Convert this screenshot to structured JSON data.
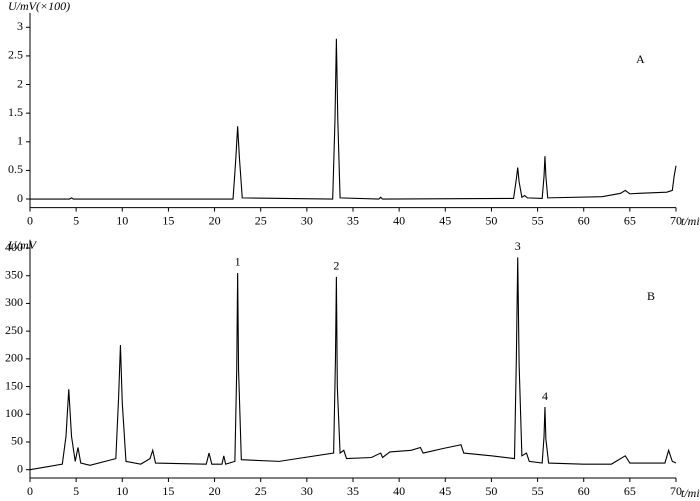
{
  "chart_data": [
    {
      "type": "line",
      "ylabel": "U/mV(×100)",
      "xlabel": "t/min",
      "panel_label": "A",
      "xlim": [
        0,
        70
      ],
      "xticks": [
        0,
        5,
        10,
        15,
        20,
        25,
        30,
        35,
        40,
        45,
        50,
        55,
        60,
        65,
        70
      ],
      "ylim": [
        -0.15,
        3.25
      ],
      "yticks": [
        0,
        0.5,
        1,
        1.5,
        2,
        2.5,
        3
      ],
      "series": [
        {
          "color": "#000000",
          "x": [
            0,
            4.3,
            4.5,
            4.7,
            22.0,
            22.3,
            22.5,
            22.7,
            23.0,
            32.8,
            33.05,
            33.2,
            33.35,
            33.6,
            37.8,
            38,
            38.2,
            52.4,
            52.7,
            52.85,
            53.0,
            53.3,
            53.6,
            53.9,
            55.5,
            55.7,
            55.8,
            55.9,
            56.1,
            62,
            64,
            64.5,
            65,
            66,
            69,
            69.6,
            69.8,
            70
          ],
          "values": [
            0,
            0,
            0.02,
            0,
            0,
            0.7,
            1.27,
            0.7,
            0.02,
            0,
            1.4,
            2.8,
            1.4,
            0.02,
            0,
            0.03,
            0,
            0.01,
            0.35,
            0.55,
            0.3,
            0.03,
            0.06,
            0.02,
            0.01,
            0.4,
            0.75,
            0.4,
            0.02,
            0.04,
            0.1,
            0.15,
            0.09,
            0.1,
            0.12,
            0.15,
            0.4,
            0.58
          ]
        }
      ]
    },
    {
      "type": "line",
      "ylabel": "U/mV",
      "xlabel": "t/min",
      "panel_label": "B",
      "xlim": [
        0,
        70
      ],
      "xticks": [
        0,
        5,
        10,
        15,
        20,
        25,
        30,
        35,
        40,
        45,
        50,
        55,
        60,
        65,
        70
      ],
      "ylim": [
        -15,
        415
      ],
      "yticks": [
        0,
        50,
        100,
        150,
        200,
        250,
        300,
        350,
        400
      ],
      "series": [
        {
          "color": "#000000",
          "x": [
            0,
            3.5,
            3.9,
            4.2,
            4.5,
            4.9,
            5.2,
            5.5,
            6.5,
            9.3,
            9.6,
            9.8,
            10.0,
            10.4,
            12,
            13.0,
            13.3,
            13.6,
            19.1,
            19.4,
            19.7,
            20.8,
            21.0,
            21.2,
            22.2,
            22.4,
            22.5,
            22.6,
            22.9,
            27,
            32.9,
            33.1,
            33.2,
            33.3,
            33.6,
            34.0,
            34.3,
            37,
            38.0,
            38.2,
            39.0,
            41.3,
            42.3,
            42.6,
            44.7,
            46.7,
            47,
            50,
            52.5,
            52.7,
            52.85,
            53.0,
            53.3,
            53.8,
            54.1,
            55.5,
            55.7,
            55.8,
            55.9,
            56.2,
            60,
            63,
            64.5,
            65,
            68.8,
            69.2,
            69.6,
            70
          ],
          "values": [
            0,
            10,
            60,
            145,
            60,
            15,
            40,
            12,
            8,
            20,
            130,
            225,
            120,
            15,
            10,
            20,
            35,
            12,
            10,
            30,
            10,
            10,
            25,
            10,
            15,
            180,
            355,
            180,
            18,
            15,
            30,
            200,
            348,
            150,
            30,
            35,
            20,
            22,
            30,
            22,
            32,
            35,
            40,
            30,
            38,
            45,
            30,
            25,
            20,
            200,
            383,
            190,
            25,
            30,
            15,
            12,
            60,
            113,
            55,
            12,
            10,
            10,
            25,
            12,
            12,
            35,
            15,
            12
          ]
        }
      ],
      "annotations": [
        {
          "text": "1",
          "x": 22.5,
          "y": 355
        },
        {
          "text": "2",
          "x": 33.2,
          "y": 348
        },
        {
          "text": "3",
          "x": 52.85,
          "y": 383
        },
        {
          "text": "4",
          "x": 55.8,
          "y": 113
        }
      ]
    }
  ]
}
